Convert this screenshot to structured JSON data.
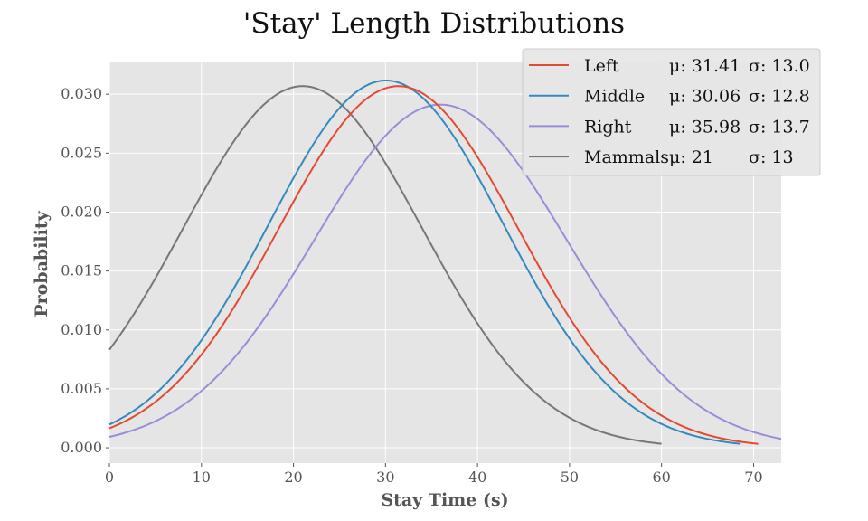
{
  "chart_data": {
    "type": "line",
    "title": "'Stay' Length Distributions",
    "xlabel": "Stay Time (s)",
    "ylabel": "Probability",
    "xlim": [
      0,
      73
    ],
    "ylim": [
      -0.0013,
      0.0327
    ],
    "xticks": [
      0,
      10,
      20,
      30,
      40,
      50,
      60,
      70
    ],
    "xtick_labels": [
      "0",
      "10",
      "20",
      "30",
      "40",
      "50",
      "60",
      "70"
    ],
    "yticks": [
      0.0,
      0.005,
      0.01,
      0.015,
      0.02,
      0.025,
      0.03
    ],
    "ytick_labels": [
      "0.000",
      "0.005",
      "0.010",
      "0.015",
      "0.020",
      "0.025",
      "0.030"
    ],
    "grid": true,
    "legend_position": "top-right",
    "series": [
      {
        "name": "Left",
        "mu_text": "μ: 31.41",
        "sigma_text": "σ: 13.0",
        "mu": 31.41,
        "sigma": 13.0,
        "x_range": [
          0,
          70.5
        ],
        "color": "#E24A33"
      },
      {
        "name": "Middle",
        "mu_text": "μ: 30.06",
        "sigma_text": "σ: 12.8",
        "mu": 30.06,
        "sigma": 12.8,
        "x_range": [
          0,
          68.5
        ],
        "color": "#348ABD"
      },
      {
        "name": "Right",
        "mu_text": "μ: 35.98",
        "sigma_text": "σ: 13.7",
        "mu": 35.98,
        "sigma": 13.7,
        "x_range": [
          0,
          73
        ],
        "color": "#988ED5"
      },
      {
        "name": "Mammals",
        "mu_text": "μ: 21",
        "sigma_text": "σ: 13",
        "mu": 21,
        "sigma": 13,
        "x_range": [
          0,
          60
        ],
        "color": "#777777"
      }
    ],
    "colors": {
      "plot_background": "#E5E5E5",
      "grid": "#FFFFFF",
      "legend_background": "#E5E5E5",
      "legend_border": "#CCCCCC"
    }
  }
}
